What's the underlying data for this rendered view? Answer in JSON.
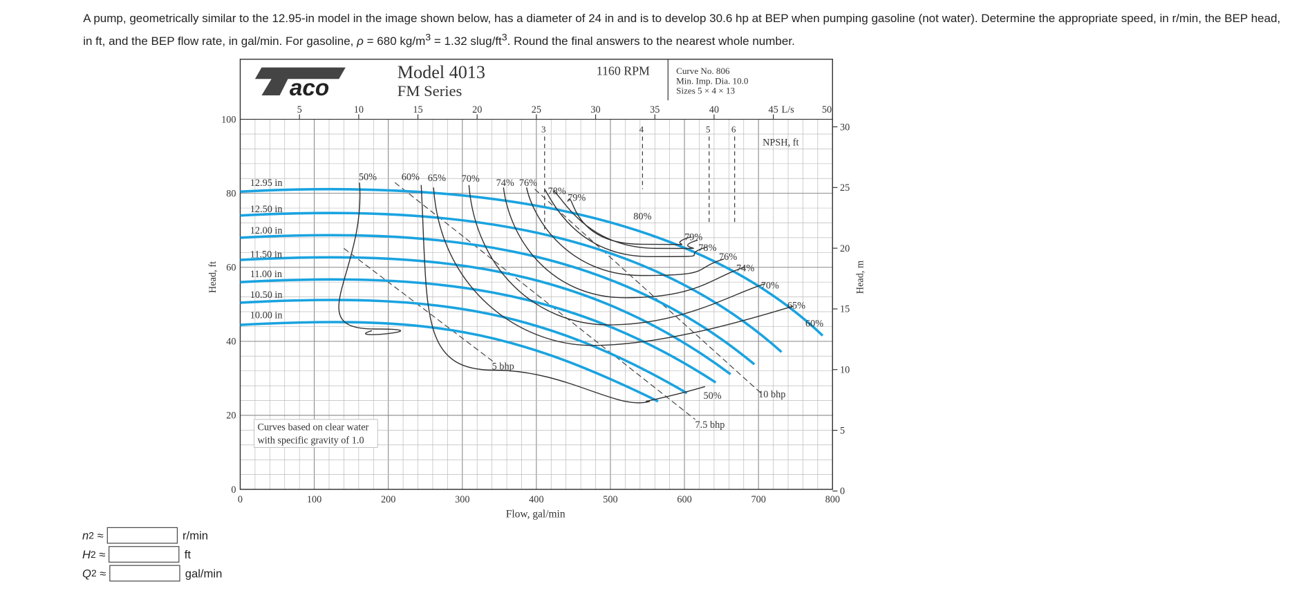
{
  "question": {
    "parts": [
      "A pump, geometrically similar to the 12.95-in model in the image shown below, has a diameter of 24 in and is to develop 30.6 hp at BEP when pumping gasoline (not water). Determine the appropriate speed, in r/min, the BEP head, in ft, and the BEP flow rate, in gal/min. For gasoline, ",
      "ρ",
      " = 680 kg/m",
      "3",
      " = 1.32 slug/ft",
      "3",
      ". Round the final answers to the nearest whole number."
    ]
  },
  "figure": {
    "logo": "aco",
    "model": "Model 4013",
    "series": "FM Series",
    "speed": "1160 RPM",
    "curve_info": [
      "Curve No. 806",
      "Min. Imp. Dia. 10.0",
      "Sizes 5 × 4 × 13"
    ],
    "flow_ticks": [
      0,
      100,
      200,
      300,
      400,
      500,
      600,
      700,
      800
    ],
    "flow_label": "Flow, gal/min",
    "head_ft_ticks": [
      0,
      20,
      40,
      60,
      80,
      100
    ],
    "head_ft_label": "Head, ft",
    "ls_ticks": [
      5,
      10,
      15,
      20,
      25,
      30,
      35,
      40,
      45,
      50
    ],
    "ls_unit": "L/s",
    "head_m_ticks": [
      0,
      5,
      10,
      15,
      20,
      25,
      30
    ],
    "head_m_label": "Head, m",
    "impellers": [
      "12.95 in",
      "12.50 in",
      "12.00 in",
      "11.50 in",
      "11.00 in",
      "10.50 in",
      "10.00 in"
    ],
    "efficiency_labels": [
      "50%",
      "60%",
      "65%",
      "70%",
      "74%",
      "76%",
      "78%",
      "79%",
      "80%",
      "79%",
      "78%",
      "76%",
      "74%",
      "70%",
      "65%",
      "60%",
      "50%"
    ],
    "bhp_labels": [
      "5 bhp",
      "7.5 bhp",
      "10 bhp"
    ],
    "npsh_values": [
      3,
      4,
      5,
      6
    ],
    "npsh_label": "NPSH, ft",
    "note": [
      "Curves based on clear water",
      "with specific gravity of 1.0"
    ]
  },
  "answers": [
    {
      "symbol": "n",
      "sub": "2",
      "rel": "≈",
      "unit": "r/min"
    },
    {
      "symbol": "H",
      "sub": "2",
      "rel": "≈",
      "unit": "ft"
    },
    {
      "symbol": "Q",
      "sub": "2",
      "rel": "≈",
      "unit": "gal/min"
    }
  ]
}
